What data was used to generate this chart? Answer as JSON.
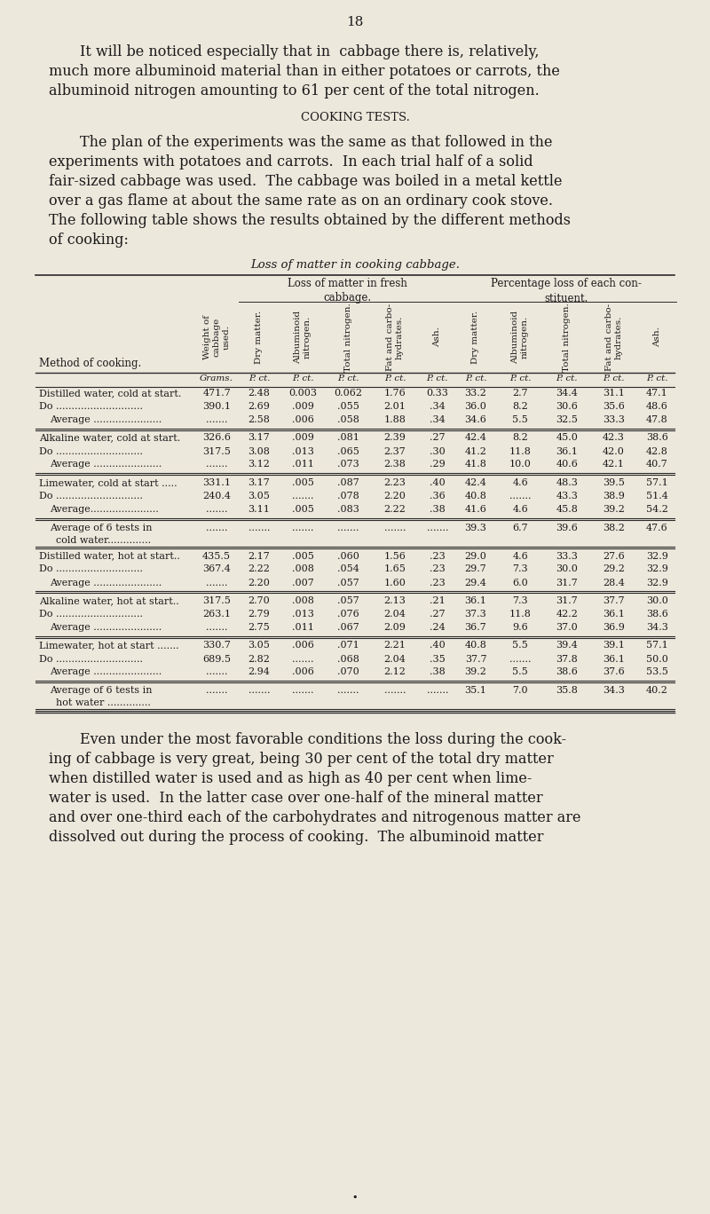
{
  "bg_color": "#ede8dc",
  "text_color": "#1a1a1a",
  "page_number": "18",
  "intro_text": "It will be noticed especially that in  cabbage there is, relatively,\nmuch more albuminoid material than in either potatoes or carrots, the\nalbuminoid nitrogen amounting to 61 per cent of the total nitrogen.",
  "section_title": "COOKING TESTS.",
  "body_text": "The plan of the experiments was the same as that followed in the\nexperiments with potatoes and carrots.  In each trial half of a solid\nfair-sized cabbage was used.  The cabbage was boiled in a metal kettle\nover a gas flame at about the same rate as on an ordinary cook stove.\nThe following table shows the results obtained by the different methods\nof cooking:",
  "table_title": "Loss of matter in cooking cabbage.",
  "span_header_loss": "Loss of matter in fresh\ncabbage.",
  "span_header_pct": "Percentage loss of each con-\nstituent.",
  "col_headers": [
    "Method of cooking.",
    "Weight of\ncabbage\nused.",
    "Dry matter.",
    "Albuminoid\nnitrogen.",
    "Total nitrogen.",
    "Fat and carbo-\nhydrates.",
    "Ash.",
    "Dry matter.",
    "Albuminoid\nnitrogen.",
    "Total nitrogen.",
    "Fat and carbo-\nhydrates.",
    "Ash."
  ],
  "unit_row": [
    "",
    "Grams.",
    "P. ct.",
    "P. ct.",
    "P. ct.",
    "P. ct.",
    "P. ct.",
    "P. ct.",
    "P. ct.",
    "P. ct.",
    "P. ct.",
    "P. ct."
  ],
  "rows": [
    {
      "label": "Distilled water, cold at start.",
      "label2": null,
      "type": "data",
      "vals": [
        "471.7",
        "2.48",
        "0.003",
        "0.062",
        "1.76",
        "0.33",
        "33.2",
        "2.7",
        "34.4",
        "31.1",
        "47.1"
      ]
    },
    {
      "label": "Do ............................",
      "label2": null,
      "type": "do",
      "vals": [
        "390.1",
        "2.69",
        ".009",
        ".055",
        "2.01",
        ".34",
        "36.0",
        "8.2",
        "30.6",
        "35.6",
        "48.6"
      ]
    },
    {
      "label": "Average ......................",
      "label2": null,
      "type": "avg",
      "vals": [
        ".......",
        "2.58",
        ".006",
        ".058",
        "1.88",
        ".34",
        "34.6",
        "5.5",
        "32.5",
        "33.3",
        "47.8"
      ]
    },
    {
      "label": "Alkaline water, cold at start.",
      "label2": null,
      "type": "data",
      "vals": [
        "326.6",
        "3.17",
        ".009",
        ".081",
        "2.39",
        ".27",
        "42.4",
        "8.2",
        "45.0",
        "42.3",
        "38.6"
      ]
    },
    {
      "label": "Do ............................",
      "label2": null,
      "type": "do",
      "vals": [
        "317.5",
        "3.08",
        ".013",
        ".065",
        "2.37",
        ".30",
        "41.2",
        "11.8",
        "36.1",
        "42.0",
        "42.8"
      ]
    },
    {
      "label": "Average ......................",
      "label2": null,
      "type": "avg",
      "vals": [
        ".......",
        "3.12",
        ".011",
        ".073",
        "2.38",
        ".29",
        "41.8",
        "10.0",
        "40.6",
        "42.1",
        "40.7"
      ]
    },
    {
      "label": "Limewater, cold at start .....",
      "label2": null,
      "type": "data",
      "vals": [
        "331.1",
        "3.17",
        ".005",
        ".087",
        "2.23",
        ".40",
        "42.4",
        "4.6",
        "48.3",
        "39.5",
        "57.1"
      ]
    },
    {
      "label": "Do ............................",
      "label2": null,
      "type": "do",
      "vals": [
        "240.4",
        "3.05",
        ".......",
        ".078",
        "2.20",
        ".36",
        "40.8",
        ".......",
        "43.3",
        "38.9",
        "51.4"
      ]
    },
    {
      "label": "Average......................",
      "label2": null,
      "type": "avg",
      "vals": [
        ".......",
        "3.11",
        ".005",
        ".083",
        "2.22",
        ".38",
        "41.6",
        "4.6",
        "45.8",
        "39.2",
        "54.2"
      ]
    },
    {
      "label": "Average of 6 tests in",
      "label2": "  cold water..............",
      "type": "avg2",
      "vals": [
        ".......",
        ".......",
        ".......",
        ".......",
        ".......",
        ".......",
        "39.3",
        "6.7",
        "39.6",
        "38.2",
        "47.6"
      ]
    },
    {
      "label": "Distilled water, hot at start..",
      "label2": null,
      "type": "data",
      "vals": [
        "435.5",
        "2.17",
        ".005",
        ".060",
        "1.56",
        ".23",
        "29.0",
        "4.6",
        "33.3",
        "27.6",
        "32.9"
      ]
    },
    {
      "label": "Do ............................",
      "label2": null,
      "type": "do",
      "vals": [
        "367.4",
        "2.22",
        ".008",
        ".054",
        "1.65",
        ".23",
        "29.7",
        "7.3",
        "30.0",
        "29.2",
        "32.9"
      ]
    },
    {
      "label": "Average ......................",
      "label2": null,
      "type": "avg",
      "vals": [
        ".......",
        "2.20",
        ".007",
        ".057",
        "1.60",
        ".23",
        "29.4",
        "6.0",
        "31.7",
        "28.4",
        "32.9"
      ]
    },
    {
      "label": "Alkaline water, hot at start..",
      "label2": null,
      "type": "data",
      "vals": [
        "317.5",
        "2.70",
        ".008",
        ".057",
        "2.13",
        ".21",
        "36.1",
        "7.3",
        "31.7",
        "37.7",
        "30.0"
      ]
    },
    {
      "label": "Do ............................",
      "label2": null,
      "type": "do",
      "vals": [
        "263.1",
        "2.79",
        ".013",
        ".076",
        "2.04",
        ".27",
        "37.3",
        "11.8",
        "42.2",
        "36.1",
        "38.6"
      ]
    },
    {
      "label": "Average ......................",
      "label2": null,
      "type": "avg",
      "vals": [
        ".......",
        "2.75",
        ".011",
        ".067",
        "2.09",
        ".24",
        "36.7",
        "9.6",
        "37.0",
        "36.9",
        "34.3"
      ]
    },
    {
      "label": "Limewater, hot at start .......",
      "label2": null,
      "type": "data",
      "vals": [
        "330.7",
        "3.05",
        ".006",
        ".071",
        "2.21",
        ".40",
        "40.8",
        "5.5",
        "39.4",
        "39.1",
        "57.1"
      ]
    },
    {
      "label": "Do ............................",
      "label2": null,
      "type": "do",
      "vals": [
        "689.5",
        "2.82",
        ".......",
        ".068",
        "2.04",
        ".35",
        "37.7",
        ".......",
        "37.8",
        "36.1",
        "50.0"
      ]
    },
    {
      "label": "Average ......................",
      "label2": null,
      "type": "avg",
      "vals": [
        ".......",
        "2.94",
        ".006",
        ".070",
        "2.12",
        ".38",
        "39.2",
        "5.5",
        "38.6",
        "37.6",
        "53.5"
      ]
    },
    {
      "label": "Average of 6 tests in",
      "label2": "  hot water ..............",
      "type": "avg2",
      "vals": [
        ".......",
        ".......",
        ".......",
        ".......",
        ".......",
        ".......",
        "35.1",
        "7.0",
        "35.8",
        "34.3",
        "40.2"
      ]
    }
  ],
  "footer_text": "Even under the most favorable conditions the loss during the cook-\ning of cabbage is very great, being 30 per cent of the total dry matter\nwhen distilled water is used and as high as 40 per cent when lime-\nwater is used.  In the latter case over one-half of the mineral matter\nand over one-third each of the carbohydrates and nitrogenous matter are\ndissolved out during the process of cooking.  The albuminoid matter"
}
